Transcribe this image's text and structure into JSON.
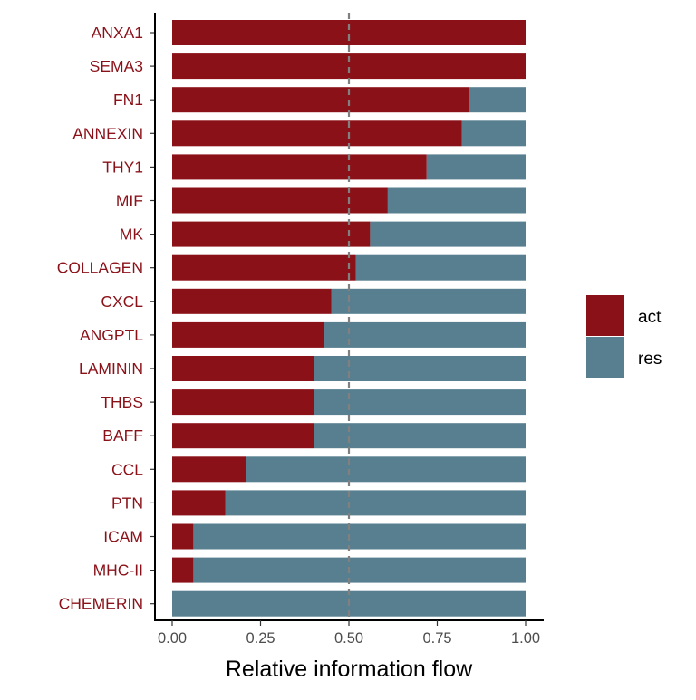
{
  "chart_data": {
    "type": "bar",
    "orientation": "horizontal",
    "stacked": true,
    "categories": [
      "ANXA1",
      "SEMA3",
      "FN1",
      "ANNEXIN",
      "THY1",
      "MIF",
      "MK",
      "COLLAGEN",
      "CXCL",
      "ANGPTL",
      "LAMININ",
      "THBS",
      "BAFF",
      "CCL",
      "PTN",
      "ICAM",
      "MHC-II",
      "CHEMERIN"
    ],
    "series": [
      {
        "name": "act",
        "values": [
          1.0,
          1.0,
          0.84,
          0.82,
          0.72,
          0.61,
          0.56,
          0.52,
          0.45,
          0.43,
          0.4,
          0.4,
          0.4,
          0.21,
          0.15,
          0.06,
          0.06,
          0.0
        ]
      },
      {
        "name": "res",
        "values": [
          0.0,
          0.0,
          0.16,
          0.18,
          0.28,
          0.39,
          0.44,
          0.48,
          0.55,
          0.57,
          0.6,
          0.6,
          0.6,
          0.79,
          0.85,
          0.94,
          0.94,
          1.0
        ]
      }
    ],
    "xlabel": "Relative information flow",
    "ylabel": "",
    "xlim": [
      0,
      1
    ],
    "xticks": [
      "0.00",
      "0.25",
      "0.50",
      "0.75",
      "1.00"
    ],
    "reference_line": {
      "x": 0.5,
      "style": "dashed"
    },
    "grid": false,
    "legend_position": "right",
    "colors": {
      "act": "#8B1119",
      "res": "#577F8F",
      "category_label": "#8B1119",
      "reference_line": "#808080"
    }
  }
}
